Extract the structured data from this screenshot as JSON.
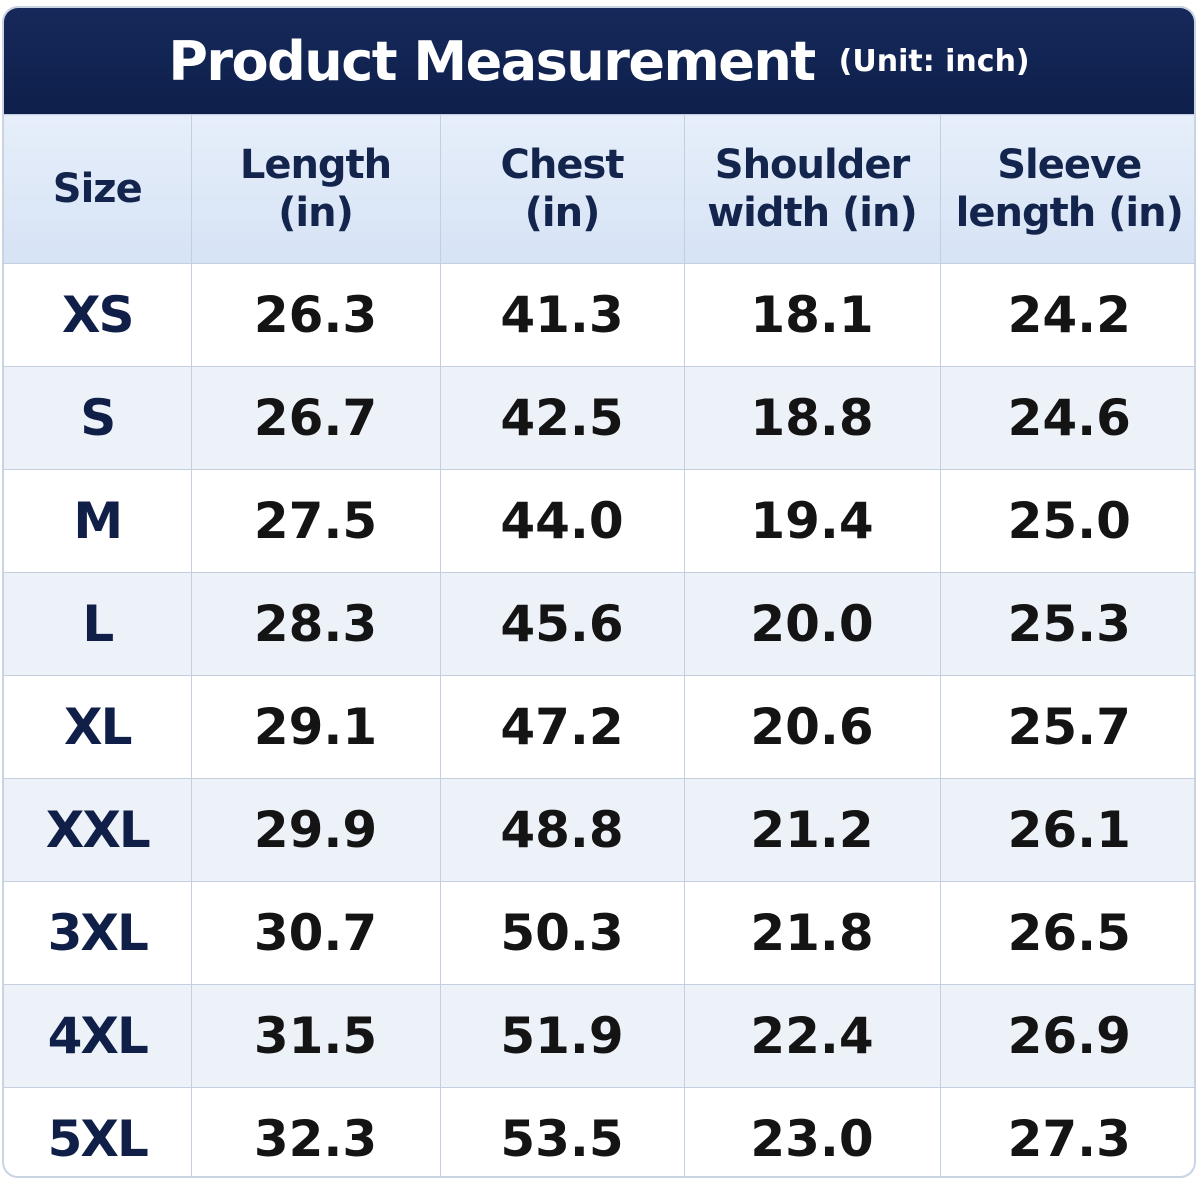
{
  "header": {
    "title": "Product Measurement",
    "unit": "(Unit: inch)"
  },
  "table": {
    "columns": [
      "Size",
      "Length (in)",
      "Chest (in)",
      "Shoulder width (in)",
      "Sleeve length (in)"
    ],
    "rows": [
      [
        "XS",
        "26.3",
        "41.3",
        "18.1",
        "24.2"
      ],
      [
        "S",
        "26.7",
        "42.5",
        "18.8",
        "24.6"
      ],
      [
        "M",
        "27.5",
        "44.0",
        "19.4",
        "25.0"
      ],
      [
        "L",
        "28.3",
        "45.6",
        "20.0",
        "25.3"
      ],
      [
        "XL",
        "29.1",
        "47.2",
        "20.6",
        "25.7"
      ],
      [
        "XXL",
        "29.9",
        "48.8",
        "21.2",
        "26.1"
      ],
      [
        "3XL",
        "30.7",
        "50.3",
        "21.8",
        "26.5"
      ],
      [
        "4XL",
        "31.5",
        "51.9",
        "22.4",
        "26.9"
      ],
      [
        "5XL",
        "32.3",
        "53.5",
        "23.0",
        "27.3"
      ]
    ]
  }
}
